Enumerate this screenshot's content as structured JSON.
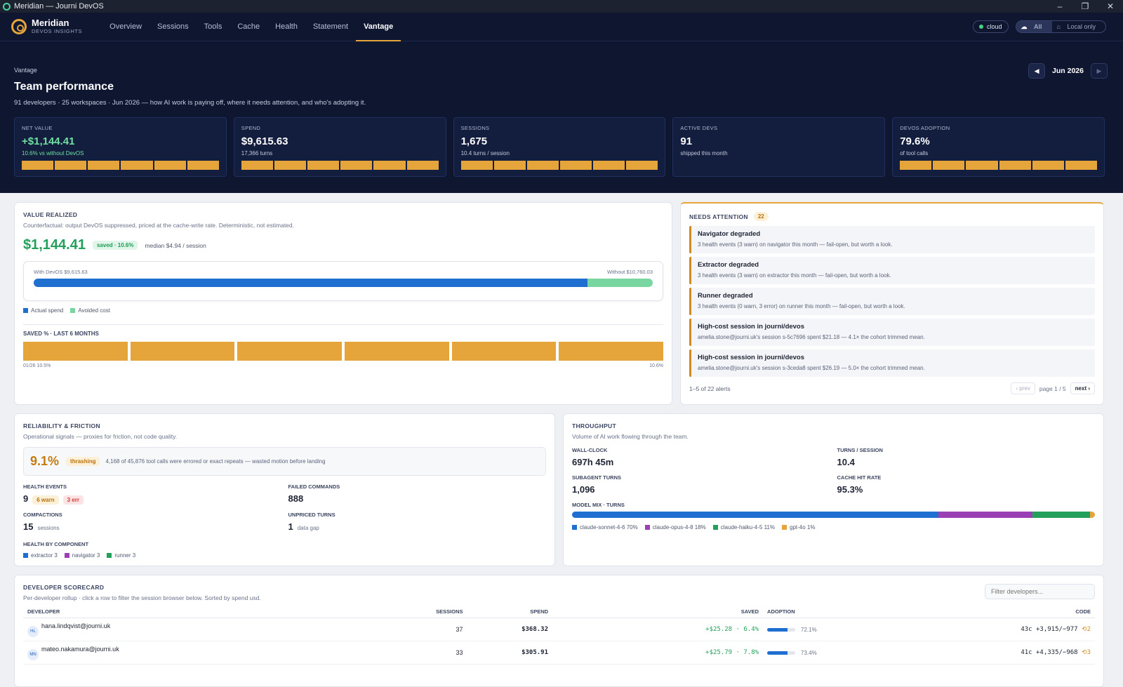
{
  "window": {
    "title": "Meridian — Journi DevOS",
    "controls": [
      "–",
      "❐",
      "✕"
    ]
  },
  "brand": {
    "name": "Meridian",
    "sub": "DEVOS INSIGHTS"
  },
  "nav": {
    "tabs": [
      {
        "label": "Overview"
      },
      {
        "label": "Sessions"
      },
      {
        "label": "Tools"
      },
      {
        "label": "Cache"
      },
      {
        "label": "Health"
      },
      {
        "label": "Statement"
      },
      {
        "label": "Vantage"
      }
    ],
    "active": "Vantage",
    "cloud_label": "cloud",
    "scope_all": "All",
    "scope_local": "Local only"
  },
  "header": {
    "crumb": "Vantage",
    "title": "Team performance",
    "desc": "91 developers · 25 workspaces · Jun 2026 — how AI work is paying off, where it needs attention, and who's adopting it.",
    "month": "Jun 2026",
    "prev_icon": "◀",
    "next_icon": "▶"
  },
  "kpis": [
    {
      "label": "NET VALUE",
      "value": "+$1,144.41",
      "sub": "10.6% vs without DevOS"
    },
    {
      "label": "SPEND",
      "value": "$9,615.63",
      "sub": "17,366 turns"
    },
    {
      "label": "SESSIONS",
      "value": "1,675",
      "sub": "10.4 turns / session"
    },
    {
      "label": "ACTIVE DEVS",
      "value": "91",
      "sub": "shipped this month"
    },
    {
      "label": "DEVOS ADOPTION",
      "value": "79.6%",
      "sub": "of tool calls"
    }
  ],
  "value": {
    "title": "VALUE REALIZED",
    "sub": "Counterfactual: output DevOS suppressed, priced at the cache-write rate. Deterministic, not estimated.",
    "amount": "$1,144.41",
    "saved_tag": "saved · 10.6%",
    "median": "median $4.94 / session",
    "with_label": "With DevOS $9,615.63",
    "without_label": "Without $10,760.03",
    "actual_share": 0.894,
    "legend_actual": "Actual spend",
    "legend_avoided": "Avoided cost",
    "colors": {
      "actual": "#1f6fd1",
      "avoided": "#7ad6a0"
    },
    "saved_header": "SAVED % · LAST 6 MONTHS",
    "saved_start": "01/26 10.5%",
    "saved_end": "10.6%"
  },
  "attention": {
    "title": "NEEDS ATTENTION",
    "count": "22",
    "alerts": [
      {
        "title": "Navigator degraded",
        "detail": "3 health events (3 warn) on navigator this month — fail-open, but worth a look."
      },
      {
        "title": "Extractor degraded",
        "detail": "3 health events (3 warn) on extractor this month — fail-open, but worth a look."
      },
      {
        "title": "Runner degraded",
        "detail": "3 health events (0 warn, 3 error) on runner this month — fail-open, but worth a look."
      },
      {
        "title": "High-cost session in journi/devos",
        "detail": "amelia.stone@journi.uk's session s-5c7696 spent $21.18 — 4.1× the cohort trimmed mean."
      },
      {
        "title": "High-cost session in journi/devos",
        "detail": "amelia.stone@journi.uk's session s-3ceda8 spent $26.19 — 5.0× the cohort trimmed mean."
      }
    ],
    "range": "1–5 of 22 alerts",
    "prev": "‹ prev",
    "page": "page 1 / 5",
    "next": "next ›"
  },
  "reliability": {
    "title": "RELIABILITY & FRICTION",
    "sub": "Operational signals — proxies for friction, not code quality.",
    "thrash_pct": "9.1%",
    "thrash_tag": "thrashing",
    "thrash_text": "4,168 of 45,876 tool calls were errored or exact repeats — wasted motion before landing",
    "health_label": "HEALTH EVENTS",
    "health_value": "9",
    "health_warn": "6 warn",
    "health_err": "3 err",
    "failed_label": "FAILED COMMANDS",
    "failed_value": "888",
    "compactions_label": "COMPACTIONS",
    "compactions_value": "15",
    "compactions_unit": "sessions",
    "unpriced_label": "UNPRICED TURNS",
    "unpriced_value": "1",
    "unpriced_unit": "data gap",
    "by_component_label": "HEALTH BY COMPONENT",
    "components": [
      {
        "label": "extractor 3",
        "color": "#1f6fd1"
      },
      {
        "label": "navigator 3",
        "color": "#9b3fb5"
      },
      {
        "label": "runner 3",
        "color": "#23a15c"
      }
    ]
  },
  "throughput": {
    "title": "THROUGHPUT",
    "sub": "Volume of AI work flowing through the team.",
    "wall_label": "WALL-CLOCK",
    "wall_value": "697h 45m",
    "tps_label": "TURNS / SESSION",
    "tps_value": "10.4",
    "sub_label": "SUBAGENT TURNS",
    "sub_value": "1,096",
    "cache_label": "CACHE HIT RATE",
    "cache_value": "95.3%",
    "mix_label": "MODEL MIX · TURNS",
    "mix": [
      {
        "label": "claude-sonnet-4-6 70%",
        "share": 70,
        "color": "#1f6fd1"
      },
      {
        "label": "claude-opus-4-8 18%",
        "share": 18,
        "color": "#9b3fb5"
      },
      {
        "label": "claude-haiku-4-5 11%",
        "share": 11,
        "color": "#23a15c"
      },
      {
        "label": "gpt-4o 1%",
        "share": 1,
        "color": "#e5a53a"
      }
    ]
  },
  "scorecard": {
    "title": "DEVELOPER SCORECARD",
    "sub": "Per-developer rollup · click a row to filter the session browser below. Sorted by spend usd.",
    "filter_placeholder": "Filter developers...",
    "columns": {
      "developer": "DEVELOPER",
      "sessions": "SESSIONS",
      "spend": "SPEND",
      "saved": "SAVED",
      "adoption": "ADOPTION",
      "code": "CODE"
    },
    "rows": [
      {
        "initials": "HL",
        "email": "hana.lindqvist@journi.uk",
        "sessions": "37",
        "spend": "$368.32",
        "saved": "+$25.28 · 6.4%",
        "adoption": 72.1,
        "adoption_label": "72.1%",
        "code": "43c +3,915/−977",
        "code_badge": "2"
      },
      {
        "initials": "MN",
        "email": "mateo.nakamura@journi.uk",
        "sessions": "33",
        "spend": "$305.91",
        "saved": "+$25.79 · 7.8%",
        "adoption": 73.4,
        "adoption_label": "73.4%",
        "code": "41c +4,335/−968",
        "code_badge": "3"
      }
    ]
  },
  "colors": {
    "accent": "#e5a53a",
    "navy": "#0e1630",
    "positive": "#23a15c"
  }
}
